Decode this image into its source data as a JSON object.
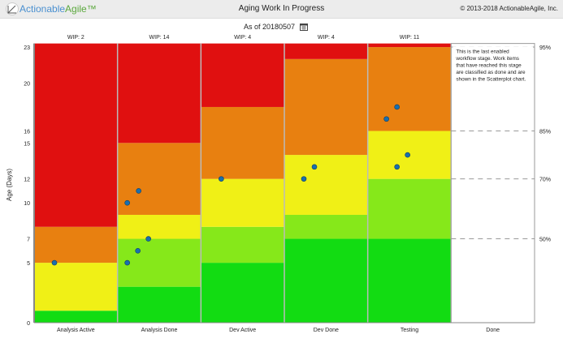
{
  "header": {
    "logo_a": "Actionable",
    "logo_b": "Agile",
    "logo_tm": "™",
    "title": "Aging Work In Progress",
    "copyright": "© 2013-2018 ActionableAgile, Inc.",
    "as_of": "As of 20180507"
  },
  "chart_data": {
    "type": "bar",
    "title": "Aging Work In Progress",
    "ylabel": "Age (Days)",
    "ylim": [
      0,
      23.3
    ],
    "yticks": [
      0,
      5,
      7,
      10,
      12,
      15,
      16,
      20,
      23
    ],
    "percentiles": [
      {
        "label": "95%",
        "value": 23
      },
      {
        "label": "85%",
        "value": 16
      },
      {
        "label": "70%",
        "value": 12
      },
      {
        "label": "50%",
        "value": 7
      }
    ],
    "colors": {
      "green": "#12dc12",
      "lightgreen": "#86e81a",
      "yellow": "#f0f016",
      "orange": "#e88010",
      "red": "#e01010",
      "dot": "#1a6fae"
    },
    "columns": [
      {
        "name": "Analysis Active",
        "wip": "WIP: 2",
        "bands": [
          [
            "green",
            1
          ],
          [
            "yellow",
            5
          ],
          [
            "orange",
            8
          ],
          [
            "red",
            23.3
          ]
        ],
        "items": [
          5
        ]
      },
      {
        "name": "Analysis Done",
        "wip": "WIP: 14",
        "bands": [
          [
            "green",
            3
          ],
          [
            "lightgreen",
            7
          ],
          [
            "yellow",
            9
          ],
          [
            "orange",
            15
          ],
          [
            "red",
            23.3
          ]
        ],
        "items": [
          10,
          11,
          7,
          6,
          5
        ]
      },
      {
        "name": "Dev Active",
        "wip": "WIP: 4",
        "bands": [
          [
            "green",
            5
          ],
          [
            "lightgreen",
            8
          ],
          [
            "yellow",
            12
          ],
          [
            "orange",
            18
          ],
          [
            "red",
            23.3
          ]
        ],
        "items": [
          12
        ]
      },
      {
        "name": "Dev Done",
        "wip": "WIP: 4",
        "bands": [
          [
            "green",
            7
          ],
          [
            "lightgreen",
            9
          ],
          [
            "yellow",
            14
          ],
          [
            "orange",
            22
          ],
          [
            "red",
            23.3
          ]
        ],
        "items": [
          12,
          13
        ]
      },
      {
        "name": "Testing",
        "wip": "WIP: 11",
        "bands": [
          [
            "green",
            7
          ],
          [
            "lightgreen",
            12
          ],
          [
            "yellow",
            16
          ],
          [
            "orange",
            23
          ],
          [
            "red",
            23.3
          ]
        ],
        "items": [
          17,
          18,
          14,
          13
        ]
      },
      {
        "name": "Done",
        "wip": "",
        "bands": [],
        "items": []
      }
    ],
    "done_note": [
      "This is the last enabled",
      "workflow stage. Work items",
      "that have reached this stage",
      "are classified as done and are",
      "shown in the Scatterplot chart."
    ]
  }
}
